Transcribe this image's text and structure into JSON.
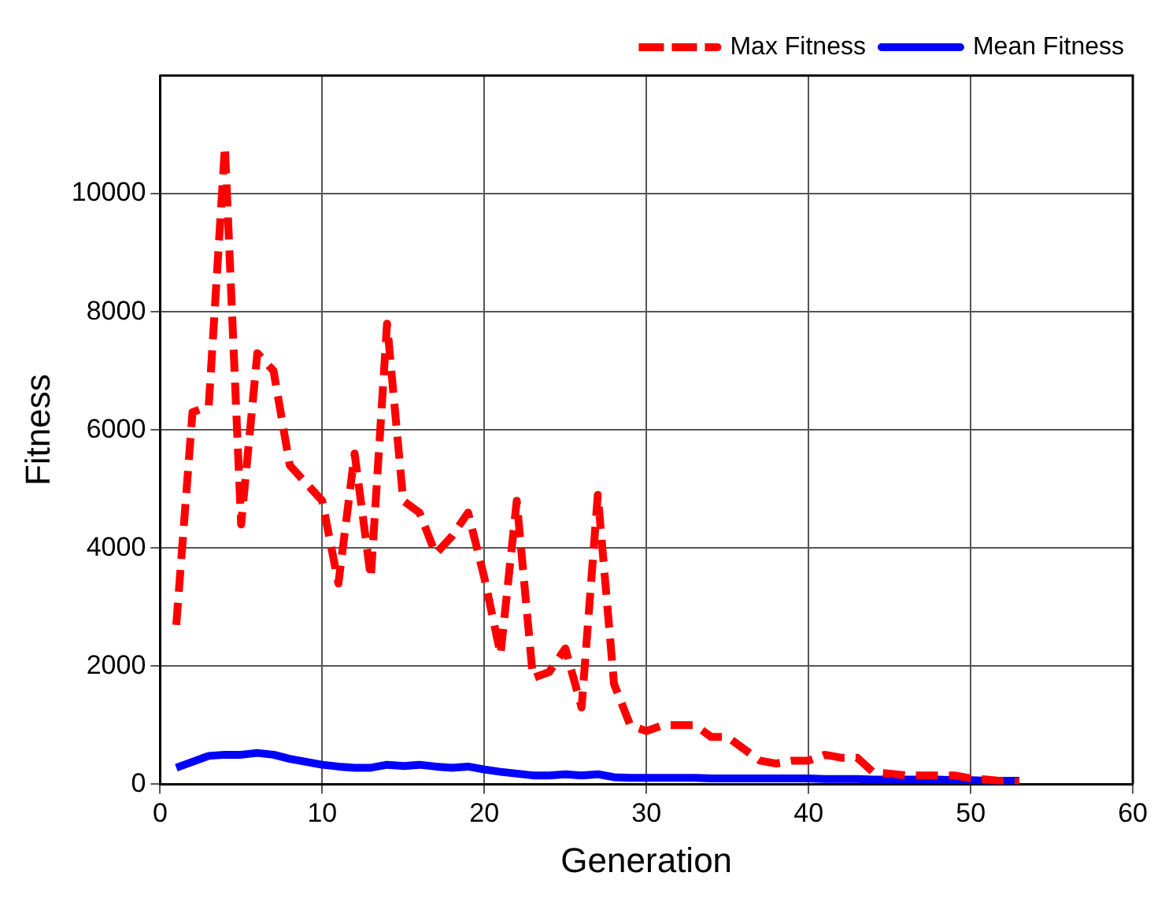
{
  "chart_data": {
    "type": "line",
    "xlabel": "Generation",
    "ylabel": "Fitness",
    "x": [
      1,
      2,
      3,
      4,
      5,
      6,
      7,
      8,
      9,
      10,
      11,
      12,
      13,
      14,
      15,
      16,
      17,
      18,
      19,
      20,
      21,
      22,
      23,
      24,
      25,
      26,
      27,
      28,
      29,
      30,
      31,
      32,
      33,
      34,
      35,
      36,
      37,
      38,
      39,
      40,
      41,
      42,
      43,
      44,
      45,
      46,
      47,
      48,
      49,
      50,
      51,
      52,
      53
    ],
    "series": [
      {
        "name": "Max Fitness",
        "color": "#ff0000",
        "line_style": "dashed",
        "values": [
          2700,
          6300,
          6400,
          10800,
          4400,
          7300,
          7000,
          5400,
          5100,
          4800,
          3400,
          5600,
          3500,
          7800,
          4800,
          4600,
          3900,
          4200,
          4600,
          3500,
          2200,
          4800,
          1800,
          1900,
          2300,
          1300,
          4900,
          1700,
          1000,
          900,
          1000,
          1000,
          1000,
          800,
          800,
          600,
          400,
          350,
          400,
          400,
          500,
          450,
          450,
          200,
          180,
          150,
          150,
          150,
          150,
          100,
          80,
          50,
          40
        ]
      },
      {
        "name": "Mean Fitness",
        "color": "#0000ff",
        "line_style": "solid",
        "values": [
          280,
          380,
          480,
          500,
          500,
          530,
          500,
          430,
          380,
          330,
          300,
          280,
          280,
          330,
          310,
          330,
          300,
          280,
          300,
          250,
          210,
          180,
          150,
          150,
          170,
          150,
          170,
          120,
          110,
          110,
          110,
          110,
          110,
          100,
          100,
          100,
          100,
          100,
          100,
          100,
          90,
          90,
          90,
          80,
          80,
          80,
          80,
          80,
          70,
          70,
          60,
          60,
          60
        ]
      }
    ],
    "xlim": [
      0,
      60
    ],
    "xticks": [
      0,
      10,
      20,
      30,
      40,
      50,
      60
    ],
    "ylim": [
      0,
      12000
    ],
    "yticks": [
      0,
      2000,
      4000,
      6000,
      8000,
      10000
    ],
    "grid": true,
    "legend": "top right",
    "marker": "none"
  }
}
